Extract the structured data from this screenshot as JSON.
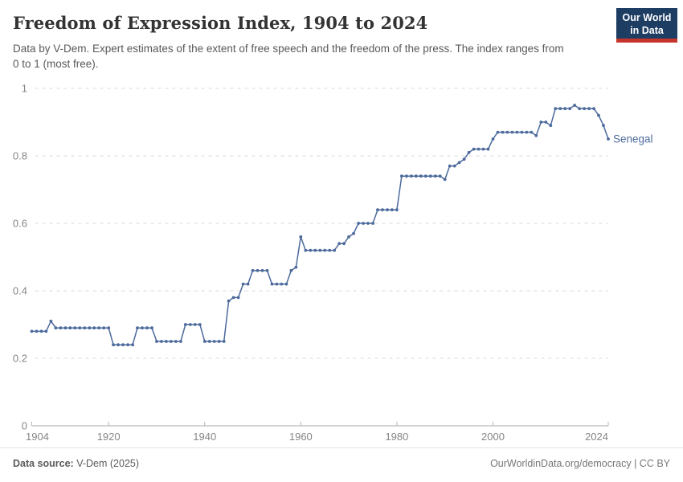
{
  "header": {
    "title": "Freedom of Expression Index, 1904 to 2024",
    "subtitle": "Data by V-Dem. Expert estimates of the extent of free speech and the freedom of the press. The index ranges from 0 to 1 (most free).",
    "logo": {
      "line1": "Our World",
      "line2": "in Data",
      "bg_color": "#1d3d63",
      "bar_color": "#c5352b"
    }
  },
  "chart_data": {
    "type": "line",
    "title": "Freedom of Expression Index, 1904 to 2024",
    "xlabel": "",
    "ylabel": "",
    "xlim": [
      1904,
      2024
    ],
    "ylim": [
      0,
      1
    ],
    "x_ticks": [
      1904,
      1920,
      1940,
      1960,
      1980,
      2000,
      2024
    ],
    "y_ticks": [
      0,
      0.2,
      0.4,
      0.6,
      0.8,
      1
    ],
    "grid": "horizontal-dashed",
    "legend_position": "end-of-line-label",
    "colors": {
      "line": "#4c6a9c",
      "grid": "#dadada",
      "axis": "#a5a5a5",
      "tick_label": "#858585"
    },
    "series": [
      {
        "name": "Senegal",
        "color": "#4c6a9c",
        "x": [
          1904,
          1905,
          1906,
          1907,
          1908,
          1909,
          1910,
          1911,
          1912,
          1913,
          1914,
          1915,
          1916,
          1917,
          1918,
          1919,
          1920,
          1921,
          1922,
          1923,
          1924,
          1925,
          1926,
          1927,
          1928,
          1929,
          1930,
          1931,
          1932,
          1933,
          1934,
          1935,
          1936,
          1937,
          1938,
          1939,
          1940,
          1941,
          1942,
          1943,
          1944,
          1945,
          1946,
          1947,
          1948,
          1949,
          1950,
          1951,
          1952,
          1953,
          1954,
          1955,
          1956,
          1957,
          1958,
          1959,
          1960,
          1961,
          1962,
          1963,
          1964,
          1965,
          1966,
          1967,
          1968,
          1969,
          1970,
          1971,
          1972,
          1973,
          1974,
          1975,
          1976,
          1977,
          1978,
          1979,
          1980,
          1981,
          1982,
          1983,
          1984,
          1985,
          1986,
          1987,
          1988,
          1989,
          1990,
          1991,
          1992,
          1993,
          1994,
          1995,
          1996,
          1997,
          1998,
          1999,
          2000,
          2001,
          2002,
          2003,
          2004,
          2005,
          2006,
          2007,
          2008,
          2009,
          2010,
          2011,
          2012,
          2013,
          2014,
          2015,
          2016,
          2017,
          2018,
          2019,
          2020,
          2021,
          2022,
          2023,
          2024
        ],
        "values": [
          0.28,
          0.28,
          0.28,
          0.28,
          0.31,
          0.29,
          0.29,
          0.29,
          0.29,
          0.29,
          0.29,
          0.29,
          0.29,
          0.29,
          0.29,
          0.29,
          0.29,
          0.24,
          0.24,
          0.24,
          0.24,
          0.24,
          0.29,
          0.29,
          0.29,
          0.29,
          0.25,
          0.25,
          0.25,
          0.25,
          0.25,
          0.25,
          0.3,
          0.3,
          0.3,
          0.3,
          0.25,
          0.25,
          0.25,
          0.25,
          0.25,
          0.37,
          0.38,
          0.38,
          0.42,
          0.42,
          0.46,
          0.46,
          0.46,
          0.46,
          0.42,
          0.42,
          0.42,
          0.42,
          0.46,
          0.47,
          0.56,
          0.52,
          0.52,
          0.52,
          0.52,
          0.52,
          0.52,
          0.52,
          0.54,
          0.54,
          0.56,
          0.57,
          0.6,
          0.6,
          0.6,
          0.6,
          0.64,
          0.64,
          0.64,
          0.64,
          0.64,
          0.74,
          0.74,
          0.74,
          0.74,
          0.74,
          0.74,
          0.74,
          0.74,
          0.74,
          0.73,
          0.77,
          0.77,
          0.78,
          0.79,
          0.81,
          0.82,
          0.82,
          0.82,
          0.82,
          0.85,
          0.87,
          0.87,
          0.87,
          0.87,
          0.87,
          0.87,
          0.87,
          0.87,
          0.86,
          0.9,
          0.9,
          0.89,
          0.94,
          0.94,
          0.94,
          0.94,
          0.95,
          0.94,
          0.94,
          0.94,
          0.94,
          0.92,
          0.89,
          0.85
        ]
      }
    ],
    "end_label": "Senegal"
  },
  "footer": {
    "source_label": "Data source:",
    "source_value": " V-Dem (2025)",
    "credit": "OurWorldinData.org/democracy | CC BY"
  }
}
